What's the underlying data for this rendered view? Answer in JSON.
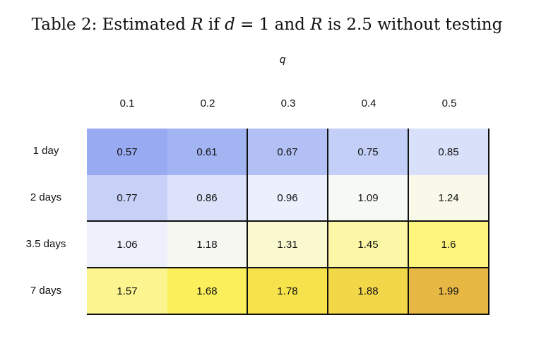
{
  "caption": {
    "prefix": "Table 2: Estimated ",
    "var_r": "R",
    "text_if": " if ",
    "var_d": "d",
    "text_eq": " = 1 and ",
    "var_r2": "R",
    "text_tail": " is 2.5 without testing"
  },
  "table": {
    "column_variable": "q",
    "columns": [
      "0.1",
      "0.2",
      "0.3",
      "0.4",
      "0.5"
    ],
    "rows": [
      {
        "label": "1 day",
        "values": [
          "0.57",
          "0.61",
          "0.67",
          "0.75",
          "0.85"
        ],
        "colors": [
          "#98aaf2",
          "#a3b4f3",
          "#b2c0f5",
          "#c4cff7",
          "#d9e0fa"
        ]
      },
      {
        "label": "2 days",
        "values": [
          "0.77",
          "0.86",
          "0.96",
          "1.09",
          "1.24"
        ],
        "colors": [
          "#c7d1f7",
          "#dbe2fa",
          "#ecf0fc",
          "#f7f9f4",
          "#f8f9e9"
        ]
      },
      {
        "label": "3.5 days",
        "values": [
          "1.06",
          "1.18",
          "1.31",
          "1.45",
          "1.6"
        ],
        "colors": [
          "#eef1fb",
          "#f6f7f0",
          "#f9f8cf",
          "#fbf7a6",
          "#fdf57e"
        ]
      },
      {
        "label": "7 days",
        "values": [
          "1.57",
          "1.68",
          "1.78",
          "1.88",
          "1.99"
        ],
        "colors": [
          "#fcf48e",
          "#fbef5c",
          "#f6e34c",
          "#f2d749",
          "#e8b845"
        ]
      }
    ]
  }
}
